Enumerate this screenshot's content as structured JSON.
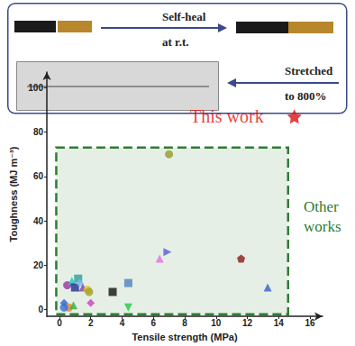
{
  "panel": {
    "steps": [
      {
        "lines": [
          "Self-heal",
          "at r.t."
        ]
      },
      {
        "lines": [
          "Stretched",
          "to 800%"
        ]
      }
    ]
  },
  "chart_data": {
    "type": "scatter",
    "xlabel": "Tensile strength (MPa)",
    "ylabel": "Toughness (MJ m⁻³)",
    "xlim": [
      -0.8,
      16.8
    ],
    "ylim": [
      -3,
      107
    ],
    "xticks": [
      0,
      2,
      4,
      6,
      8,
      10,
      12,
      14,
      16
    ],
    "yticks": [
      0,
      20,
      40,
      60,
      80,
      100
    ],
    "grid": false,
    "x": [
      0.3,
      0.5,
      0.8,
      1.0,
      1.2,
      1.3,
      1.5,
      1.8,
      1.9,
      2.0,
      0.6,
      0.9,
      0.3,
      3.4,
      4.4,
      4.4,
      6.4,
      6.9,
      7.0,
      11.6,
      13.3
    ],
    "values": [
      3,
      11,
      13,
      10,
      14,
      12,
      10,
      9,
      8,
      3,
      1,
      2,
      1,
      8,
      12,
      1,
      23,
      26,
      70,
      23,
      10
    ],
    "colors": [
      "#3a5fcd",
      "#9b30a0",
      "#20c0c8",
      "#1f2f8f",
      "#2aa198",
      "#7fb8f0",
      "#7a3fb0",
      "#e0c020",
      "#a0a030",
      "#d040c0",
      "#f08020",
      "#30b040",
      "#3070e0",
      "#111111",
      "#4f81bd",
      "#22cc44",
      "#e070e0",
      "#5b5bd6",
      "#9a9a2a",
      "#8b1a1a",
      "#3a5fcd"
    ],
    "markers": [
      "diamond",
      "circle",
      "triangle",
      "rect",
      "rect",
      "diamond",
      "triangle",
      "circle",
      "circle",
      "diamond",
      "circle",
      "triangle",
      "circle",
      "rect",
      "rect",
      "triangle-down",
      "triangle",
      "triangle-right",
      "circle",
      "pentagon",
      "triangle"
    ],
    "region": {
      "x": [
        -0.2,
        14.6
      ],
      "y": [
        -2,
        73
      ],
      "color": "#2e7d32",
      "lines": [
        "Other",
        "works"
      ]
    },
    "highlight": {
      "x": 15,
      "y": 87,
      "color": "#e01010",
      "marker": "star",
      "label": "This work"
    }
  }
}
